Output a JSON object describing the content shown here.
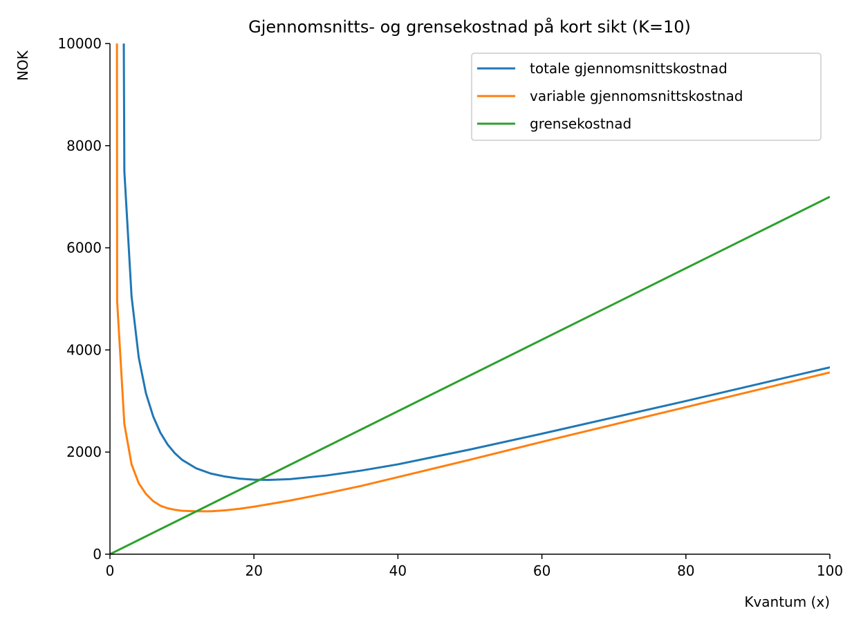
{
  "chart_data": {
    "type": "line",
    "title": "Gjennomsnitts- og grensekostnad på kort sikt (K=10)",
    "xlabel": "Kvantum (x)",
    "ylabel": "NOK",
    "xlim": [
      0,
      100
    ],
    "ylim": [
      0,
      10000
    ],
    "x_ticks": [
      0,
      20,
      40,
      60,
      80,
      100
    ],
    "y_ticks": [
      0,
      2000,
      4000,
      6000,
      8000,
      10000
    ],
    "x_tick_labels": [
      "0",
      "20",
      "40",
      "60",
      "80",
      "100"
    ],
    "y_tick_labels": [
      "0",
      "2000",
      "4000",
      "6000",
      "8000",
      "10000"
    ],
    "grid": false,
    "legend_position": "top-right",
    "series": [
      {
        "name": "totale gjennomsnittskostnad",
        "color": "#1f77b4",
        "points": [
          [
            2,
            7500
          ],
          [
            3,
            5050
          ],
          [
            4,
            3850
          ],
          [
            5,
            3150
          ],
          [
            6,
            2700
          ],
          [
            7,
            2380
          ],
          [
            8,
            2150
          ],
          [
            9,
            1980
          ],
          [
            10,
            1850
          ],
          [
            12,
            1680
          ],
          [
            14,
            1580
          ],
          [
            16,
            1520
          ],
          [
            18,
            1480
          ],
          [
            20,
            1460
          ],
          [
            22,
            1455
          ],
          [
            25,
            1470
          ],
          [
            30,
            1540
          ],
          [
            35,
            1640
          ],
          [
            40,
            1760
          ],
          [
            50,
            2050
          ],
          [
            60,
            2360
          ],
          [
            70,
            2680
          ],
          [
            80,
            3000
          ],
          [
            90,
            3330
          ],
          [
            100,
            3660
          ]
        ]
      },
      {
        "name": "variable gjennomsnittskostnad",
        "color": "#ff7f0e",
        "points": [
          [
            1,
            4950
          ],
          [
            2,
            2550
          ],
          [
            3,
            1760
          ],
          [
            4,
            1390
          ],
          [
            5,
            1180
          ],
          [
            6,
            1040
          ],
          [
            7,
            950
          ],
          [
            8,
            900
          ],
          [
            9,
            870
          ],
          [
            10,
            850
          ],
          [
            12,
            840
          ],
          [
            14,
            840
          ],
          [
            16,
            860
          ],
          [
            18,
            890
          ],
          [
            20,
            930
          ],
          [
            25,
            1050
          ],
          [
            30,
            1190
          ],
          [
            35,
            1340
          ],
          [
            40,
            1510
          ],
          [
            50,
            1850
          ],
          [
            60,
            2200
          ],
          [
            70,
            2540
          ],
          [
            80,
            2880
          ],
          [
            90,
            3220
          ],
          [
            100,
            3560
          ]
        ]
      },
      {
        "name": "grensekostnad",
        "color": "#2ca02c",
        "points": [
          [
            0,
            0
          ],
          [
            100,
            7000
          ]
        ]
      }
    ]
  }
}
